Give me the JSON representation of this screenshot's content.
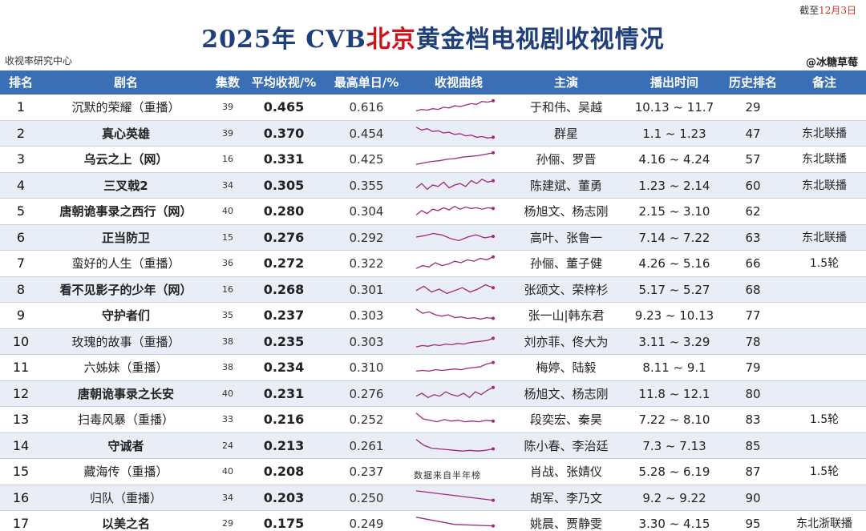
{
  "date_note": {
    "prefix": "截至",
    "date": "12月3日"
  },
  "title": {
    "part1": "2025年 CVB",
    "highlight": "北京",
    "part2": "黄金档电视剧收视情况"
  },
  "source_left": "收视率研究中心",
  "source_right": "@冰糖草莓",
  "watermark": "数据来自半年榜",
  "columns": [
    "排名",
    "剧名",
    "集数",
    "平均收视/%",
    "最高单日/%",
    "收视曲线",
    "主演",
    "播出时间",
    "历史排名",
    "备注"
  ],
  "line_color": "#a1287a",
  "rows": [
    {
      "rank": "1",
      "name": "沉默的荣耀（重播）",
      "bold": false,
      "eps": "39",
      "avg": "0.465",
      "max": "0.616",
      "cast": "于和伟、吴越",
      "air": "10.13 ~ 11.7",
      "hist": "29",
      "note": "",
      "curve": [
        0.2,
        0.3,
        0.25,
        0.35,
        0.3,
        0.45,
        0.4,
        0.55,
        0.5,
        0.6,
        0.7,
        0.65,
        0.85,
        0.8,
        0.9
      ]
    },
    {
      "rank": "2",
      "name": "真心英雄",
      "bold": true,
      "eps": "39",
      "avg": "0.370",
      "max": "0.454",
      "cast": "群星",
      "air": "1.1 ~ 1.23",
      "hist": "47",
      "note": "东北联播",
      "curve": [
        0.9,
        0.7,
        0.8,
        0.6,
        0.65,
        0.5,
        0.55,
        0.4,
        0.45,
        0.3,
        0.35,
        0.2,
        0.25,
        0.15,
        0.2
      ]
    },
    {
      "rank": "3",
      "name": "乌云之上（网）",
      "bold": true,
      "eps": "16",
      "avg": "0.331",
      "max": "0.425",
      "cast": "孙俪、罗晋",
      "air": "4.16 ~ 4.24",
      "hist": "57",
      "note": "东北联播",
      "curve": [
        0.1,
        0.2,
        0.3,
        0.35,
        0.45,
        0.5,
        0.6,
        0.65,
        0.7,
        0.8,
        0.9
      ]
    },
    {
      "rank": "4",
      "name": "三叉戟2",
      "bold": true,
      "eps": "34",
      "avg": "0.305",
      "max": "0.355",
      "cast": "陈建斌、董勇",
      "air": "1.23 ~ 2.14",
      "hist": "60",
      "note": "东北联播",
      "curve": [
        0.3,
        0.6,
        0.2,
        0.5,
        0.4,
        0.7,
        0.3,
        0.5,
        0.6,
        0.4,
        0.8,
        0.6,
        0.9,
        0.7,
        0.8
      ]
    },
    {
      "rank": "5",
      "name": "唐朝诡事录之西行（网）",
      "bold": true,
      "eps": "40",
      "avg": "0.280",
      "max": "0.304",
      "cast": "杨旭文、杨志刚",
      "air": "2.15 ~ 3.10",
      "hist": "62",
      "note": "",
      "curve": [
        0.2,
        0.5,
        0.3,
        0.6,
        0.5,
        0.7,
        0.55,
        0.8,
        0.6,
        0.75,
        0.65,
        0.7,
        0.6,
        0.7,
        0.65
      ]
    },
    {
      "rank": "6",
      "name": "正当防卫",
      "bold": true,
      "eps": "15",
      "avg": "0.276",
      "max": "0.292",
      "cast": "高叶、张鲁一",
      "air": "7.14 ~ 7.22",
      "hist": "63",
      "note": "东北联播",
      "curve": [
        0.5,
        0.6,
        0.75,
        0.65,
        0.4,
        0.25,
        0.5,
        0.65,
        0.45,
        0.55
      ]
    },
    {
      "rank": "7",
      "name": "蛮好的人生（重播）",
      "bold": false,
      "eps": "36",
      "avg": "0.272",
      "max": "0.322",
      "cast": "孙俪、董子健",
      "air": "4.26 ~ 5.16",
      "hist": "66",
      "note": "1.5轮",
      "curve": [
        0.1,
        0.3,
        0.2,
        0.5,
        0.3,
        0.4,
        0.6,
        0.5,
        0.7,
        0.6,
        0.8,
        0.7,
        0.9
      ]
    },
    {
      "rank": "8",
      "name": "看不见影子的少年（网）",
      "bold": true,
      "eps": "16",
      "avg": "0.268",
      "max": "0.301",
      "cast": "张颂文、荣梓杉",
      "air": "5.17 ~ 5.27",
      "hist": "68",
      "note": "",
      "curve": [
        0.4,
        0.7,
        0.3,
        0.5,
        0.2,
        0.4,
        0.6,
        0.3,
        0.5,
        0.8,
        0.6
      ]
    },
    {
      "rank": "9",
      "name": "守护者们",
      "bold": true,
      "eps": "35",
      "avg": "0.237",
      "max": "0.303",
      "cast": "张一山|韩东君",
      "air": "9.23 ~ 10.13",
      "hist": "77",
      "note": "",
      "curve": [
        0.9,
        0.6,
        0.7,
        0.5,
        0.4,
        0.5,
        0.3,
        0.35,
        0.25,
        0.3,
        0.2,
        0.3,
        0.25
      ]
    },
    {
      "rank": "10",
      "name": "玫瑰的故事（重播）",
      "bold": false,
      "eps": "38",
      "avg": "0.235",
      "max": "0.303",
      "cast": "刘亦菲、佟大为",
      "air": "3.11 ~ 3.29",
      "hist": "78",
      "note": "",
      "curve": [
        0.1,
        0.2,
        0.15,
        0.25,
        0.2,
        0.3,
        0.25,
        0.35,
        0.3,
        0.4,
        0.45,
        0.5,
        0.55,
        0.7
      ]
    },
    {
      "rank": "11",
      "name": "六姊妹（重播）",
      "bold": false,
      "eps": "38",
      "avg": "0.234",
      "max": "0.310",
      "cast": "梅婷、陆毅",
      "air": "8.11 ~ 9.1",
      "hist": "79",
      "note": "",
      "curve": [
        0.2,
        0.25,
        0.2,
        0.3,
        0.25,
        0.3,
        0.35,
        0.3,
        0.4,
        0.45,
        0.5,
        0.7,
        0.8
      ]
    },
    {
      "rank": "12",
      "name": "唐朝诡事录之长安",
      "bold": true,
      "eps": "40",
      "avg": "0.231",
      "max": "0.276",
      "cast": "杨旭文、杨志刚",
      "air": "11.8 ~ 12.1",
      "hist": "80",
      "note": "",
      "curve": [
        0.3,
        0.5,
        0.2,
        0.4,
        0.3,
        0.6,
        0.4,
        0.3,
        0.5,
        0.2,
        0.6,
        0.4,
        0.7,
        0.9
      ]
    },
    {
      "rank": "13",
      "name": "扫毒风暴（重播）",
      "bold": false,
      "eps": "33",
      "avg": "0.216",
      "max": "0.252",
      "cast": "段奕宏、秦昊",
      "air": "7.22 ~ 8.10",
      "hist": "83",
      "note": "1.5轮",
      "curve": [
        0.9,
        0.5,
        0.4,
        0.3,
        0.45,
        0.35,
        0.4,
        0.3,
        0.35,
        0.3,
        0.4,
        0.35
      ]
    },
    {
      "rank": "14",
      "name": "守诚者",
      "bold": true,
      "eps": "24",
      "avg": "0.213",
      "max": "0.261",
      "cast": "陈小春、李治廷",
      "air": "7.3 ~ 7.13",
      "hist": "85",
      "note": "",
      "curve": [
        0.9,
        0.5,
        0.3,
        0.25,
        0.2,
        0.15,
        0.1,
        0.15,
        0.1,
        0.15,
        0.25
      ]
    },
    {
      "rank": "15",
      "name": "藏海传（重播）",
      "bold": false,
      "eps": "40",
      "avg": "0.208",
      "max": "0.237",
      "cast": "肖战、张婧仪",
      "air": "5.28 ~ 6.19",
      "hist": "87",
      "note": "1.5轮",
      "curve": []
    },
    {
      "rank": "16",
      "name": "归队（重播）",
      "bold": false,
      "eps": "34",
      "avg": "0.203",
      "max": "0.250",
      "cast": "胡军、李乃文",
      "air": "9.2 ~ 9.22",
      "hist": "90",
      "note": "",
      "curve": [
        0.95,
        0.3
      ]
    },
    {
      "rank": "17",
      "name": "以美之名",
      "bold": true,
      "eps": "29",
      "avg": "0.175",
      "max": "0.249",
      "cast": "姚晨、贾静雯",
      "air": "3.30 ~ 4.15",
      "hist": "95",
      "note": "东北浙联播",
      "curve": [
        0.9,
        0.4,
        0.3
      ]
    }
  ]
}
